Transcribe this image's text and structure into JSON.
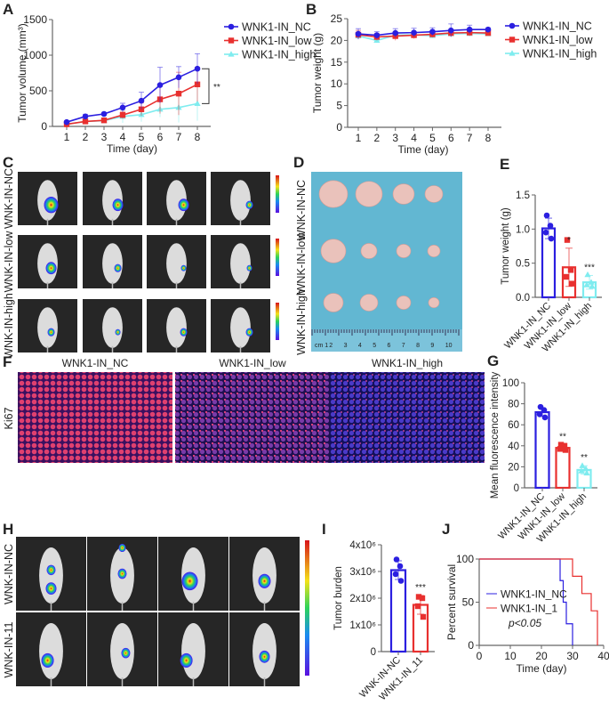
{
  "panel_labels": {
    "A": "A",
    "B": "B",
    "C": "C",
    "D": "D",
    "E": "E",
    "F": "F",
    "G": "G",
    "H": "H",
    "I": "I",
    "J": "J"
  },
  "colors": {
    "NC": "#2b1fe0",
    "low": "#e8302f",
    "high": "#7fecef"
  },
  "chart_data": [
    {
      "panel": "A",
      "type": "line",
      "xlabel": "Time (day)",
      "ylabel": "Tumor volume (mm³)",
      "x": [
        1,
        2,
        3,
        4,
        5,
        6,
        7,
        8
      ],
      "ylim": [
        0,
        1500
      ],
      "yticks": [
        0,
        500,
        1000,
        1500
      ],
      "series": [
        {
          "name": "WNK1-IN_NC",
          "key": "NC",
          "marker": "circle",
          "values": [
            60,
            140,
            175,
            265,
            360,
            580,
            690,
            810
          ],
          "err": [
            20,
            30,
            20,
            60,
            120,
            250,
            150,
            210
          ]
        },
        {
          "name": "WNK1-IN_low",
          "key": "low",
          "marker": "square",
          "values": [
            30,
            70,
            85,
            160,
            240,
            380,
            460,
            590
          ],
          "err": [
            10,
            20,
            20,
            50,
            90,
            200,
            300,
            240
          ]
        },
        {
          "name": "WNK1-IN_high",
          "key": "high",
          "marker": "triangle",
          "values": [
            30,
            70,
            80,
            140,
            165,
            240,
            265,
            320
          ],
          "err": [
            10,
            15,
            20,
            90,
            100,
            110,
            210,
            240
          ]
        }
      ],
      "annotation": "**"
    },
    {
      "panel": "B",
      "type": "line",
      "xlabel": "Time (day)",
      "ylabel": "Tumor weight (g)",
      "x": [
        1,
        2,
        3,
        4,
        5,
        6,
        7,
        8
      ],
      "ylim": [
        0,
        25
      ],
      "yticks": [
        0,
        5,
        10,
        15,
        20,
        25
      ],
      "series": [
        {
          "name": "WNK1-IN_NC",
          "key": "NC",
          "marker": "circle",
          "values": [
            21.5,
            21.2,
            21.7,
            21.8,
            22.0,
            22.3,
            22.5,
            22.5
          ],
          "err": [
            1.2,
            0.8,
            1.0,
            1.0,
            0.9,
            1.5,
            1.0,
            0.4
          ]
        },
        {
          "name": "WNK1-IN_low",
          "key": "low",
          "marker": "square",
          "values": [
            21.3,
            20.8,
            21.0,
            21.2,
            21.4,
            21.7,
            21.8,
            21.7
          ],
          "err": [
            1.0,
            0.8,
            1.0,
            0.8,
            0.7,
            0.8,
            0.8,
            0.5
          ]
        },
        {
          "name": "WNK1-IN_high",
          "key": "high",
          "marker": "triangle",
          "values": [
            21.0,
            20.0,
            21.2,
            21.3,
            21.1,
            21.5,
            21.6,
            21.5
          ],
          "err": [
            0.8,
            0.6,
            0.6,
            0.6,
            0.6,
            0.6,
            0.6,
            0.5
          ]
        }
      ]
    },
    {
      "panel": "E",
      "type": "bar",
      "ylabel": "Tumor weight (g)",
      "ylim": [
        0,
        1.5
      ],
      "yticks": [
        "0.0",
        "0.5",
        "1.0",
        "1.5"
      ],
      "categories": [
        "WNK1-IN_NC",
        "WNK1-IN_low",
        "WNK1-IN_high"
      ],
      "keys": [
        "NC",
        "low",
        "high"
      ],
      "values": [
        1.01,
        0.44,
        0.22
      ],
      "err": [
        0.15,
        0.28,
        0.1
      ],
      "points": [
        [
          1.2,
          1.05,
          0.95,
          0.86
        ],
        [
          0.84,
          0.4,
          0.3,
          0.2
        ],
        [
          0.33,
          0.22,
          0.18,
          0.16
        ]
      ],
      "sig": [
        "",
        "*",
        "***"
      ]
    },
    {
      "panel": "G",
      "type": "bar",
      "ylabel": "Mean fluorescence intensity",
      "ylim": [
        0,
        100
      ],
      "yticks": [
        "0",
        "20",
        "40",
        "60",
        "80",
        "100"
      ],
      "categories": [
        "WNK1-IN_NC",
        "WNK1-IN_low",
        "WNK1-IN_high"
      ],
      "keys": [
        "NC",
        "low",
        "high"
      ],
      "values": [
        72,
        38,
        17
      ],
      "err": [
        4,
        3,
        4
      ],
      "points": [
        [
          77,
          74,
          70,
          67
        ],
        [
          41,
          40,
          37,
          36
        ],
        [
          21,
          18,
          16,
          14
        ]
      ],
      "sig": [
        "",
        "**",
        "**"
      ]
    },
    {
      "panel": "I",
      "type": "bar",
      "ylabel": "Tumor burden",
      "ylim": [
        0,
        4000000
      ],
      "yticks": [
        "0",
        "1x10⁶",
        "2x10⁶",
        "3x10⁶",
        "4x10⁶"
      ],
      "categories": [
        "WNK-IN-NC",
        "WNK1-IN_11"
      ],
      "keys": [
        "NC",
        "low"
      ],
      "values": [
        3050000,
        1750000
      ],
      "err": [
        350000,
        350000
      ],
      "points": [
        [
          3450000,
          3200000,
          2900000,
          2650000
        ],
        [
          2050000,
          2000000,
          1700000,
          1300000
        ]
      ],
      "sig": [
        "",
        "***"
      ]
    },
    {
      "panel": "J",
      "type": "line",
      "subtype": "kaplan-meier",
      "xlabel": "Time (day)",
      "ylabel": "Percent survival",
      "xlim": [
        0,
        40
      ],
      "xticks": [
        0,
        10,
        20,
        30,
        40
      ],
      "ylim": [
        0,
        100
      ],
      "yticks": [
        0,
        50,
        100
      ],
      "series": [
        {
          "name": "WNK1-IN_NC",
          "key": "NC",
          "steps": [
            [
              0,
              100
            ],
            [
              26,
              75
            ],
            [
              27,
              50
            ],
            [
              28,
              25
            ],
            [
              30,
              0
            ]
          ]
        },
        {
          "name": "WNK1-IN_1",
          "key": "low",
          "steps": [
            [
              0,
              100
            ],
            [
              30,
              80
            ],
            [
              33,
              60
            ],
            [
              36,
              40
            ],
            [
              38,
              0
            ]
          ]
        }
      ],
      "annotation": "p<0.05"
    }
  ],
  "panel_C": {
    "row_labels": [
      "WNK-IN-NC",
      "WNK-IN-low",
      "WNK-IN-high"
    ]
  },
  "panel_D": {
    "row_labels": [
      "WNK-IN-NC",
      "WNK-IN-low",
      "WNK-IN-high"
    ],
    "ruler_labels": [
      "cm 1",
      "2",
      "3",
      "4",
      "5",
      "6",
      "7",
      "8",
      "9",
      "10"
    ]
  },
  "panel_F": {
    "column_titles": [
      "WNK1-IN_NC",
      "WNK1-IN_low",
      "WNK1-IN_high"
    ],
    "row_label": "Ki67"
  },
  "panel_H": {
    "row_labels": [
      "WNK-IN-NC",
      "WNK-IN-11"
    ]
  }
}
